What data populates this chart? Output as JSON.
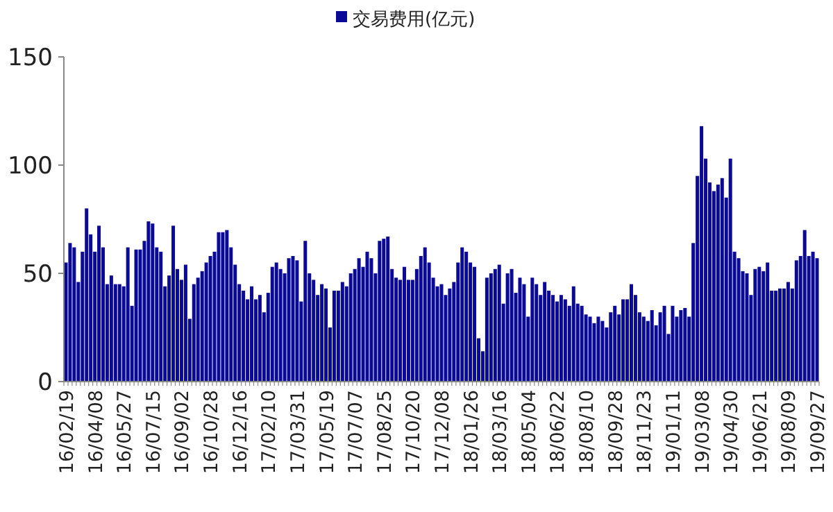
{
  "chart_data": {
    "type": "bar",
    "categories": [
      "16/02/19",
      null,
      null,
      null,
      null,
      null,
      null,
      "16/04/08",
      null,
      null,
      null,
      null,
      null,
      null,
      "16/05/27",
      null,
      null,
      null,
      null,
      null,
      null,
      "16/07/15",
      null,
      null,
      null,
      null,
      null,
      null,
      "16/09/02",
      null,
      null,
      null,
      null,
      null,
      null,
      "16/10/28",
      null,
      null,
      null,
      null,
      null,
      null,
      "16/12/16",
      null,
      null,
      null,
      null,
      null,
      null,
      "17/02/10",
      null,
      null,
      null,
      null,
      null,
      null,
      "17/03/31",
      null,
      null,
      null,
      null,
      null,
      null,
      "17/05/19",
      null,
      null,
      null,
      null,
      null,
      null,
      "17/07/07",
      null,
      null,
      null,
      null,
      null,
      null,
      "17/08/25",
      null,
      null,
      null,
      null,
      null,
      null,
      "17/10/20",
      null,
      null,
      null,
      null,
      null,
      null,
      "17/12/08",
      null,
      null,
      null,
      null,
      null,
      null,
      "18/01/26",
      null,
      null,
      null,
      null,
      null,
      null,
      "18/03/16",
      null,
      null,
      null,
      null,
      null,
      null,
      "18/05/04",
      null,
      null,
      null,
      null,
      null,
      null,
      "18/06/22",
      null,
      null,
      null,
      null,
      null,
      null,
      "18/08/10",
      null,
      null,
      null,
      null,
      null,
      null,
      "18/09/28",
      null,
      null,
      null,
      null,
      null,
      null,
      "18/11/23",
      null,
      null,
      null,
      null,
      null,
      null,
      "19/01/11",
      null,
      null,
      null,
      null,
      null,
      null,
      "19/03/08",
      null,
      null,
      null,
      null,
      null,
      null,
      "19/04/30",
      null,
      null,
      null,
      null,
      null,
      null,
      "19/06/21",
      null,
      null,
      null,
      null,
      null,
      null,
      "19/08/09",
      null,
      null,
      null,
      null,
      null,
      null,
      "19/09/27"
    ],
    "series": [
      {
        "name": "交易费用(亿元)",
        "color": "#0a0a96",
        "values": [
          55,
          64,
          62,
          46,
          60,
          80,
          68,
          60,
          72,
          62,
          45,
          49,
          45,
          45,
          44,
          62,
          35,
          61,
          61,
          65,
          74,
          73,
          62,
          60,
          44,
          49,
          72,
          52,
          47,
          54,
          29,
          45,
          48,
          51,
          55,
          58,
          60,
          69,
          69,
          70,
          62,
          54,
          45,
          42,
          38,
          44,
          38,
          40,
          32,
          41,
          53,
          55,
          52,
          50,
          57,
          58,
          56,
          37,
          65,
          50,
          47,
          40,
          45,
          43,
          25,
          42,
          42,
          46,
          44,
          50,
          52,
          57,
          53,
          60,
          57,
          50,
          65,
          66,
          67,
          52,
          48,
          47,
          53,
          47,
          47,
          52,
          58,
          62,
          55,
          48,
          44,
          45,
          40,
          43,
          46,
          55,
          62,
          60,
          55,
          53,
          20,
          14,
          48,
          50,
          52,
          54,
          36,
          50,
          52,
          41,
          48,
          45,
          30,
          48,
          45,
          40,
          46,
          42,
          40,
          37,
          40,
          38,
          35,
          44,
          36,
          35,
          31,
          30,
          27,
          30,
          28,
          25,
          32,
          35,
          31,
          38,
          38,
          45,
          40,
          32,
          30,
          28,
          33,
          26,
          32,
          35,
          22,
          35,
          30,
          33,
          34,
          30,
          64,
          95,
          118,
          103,
          92,
          88,
          91,
          94,
          85,
          103,
          60,
          57,
          51,
          50,
          40,
          52,
          53,
          51,
          55,
          42,
          42,
          43,
          43,
          46,
          43,
          56,
          58,
          70,
          58,
          60,
          57
        ]
      }
    ],
    "ylim": [
      0,
      150
    ],
    "yticks": [
      0,
      50,
      100,
      150
    ],
    "legend": "top"
  }
}
